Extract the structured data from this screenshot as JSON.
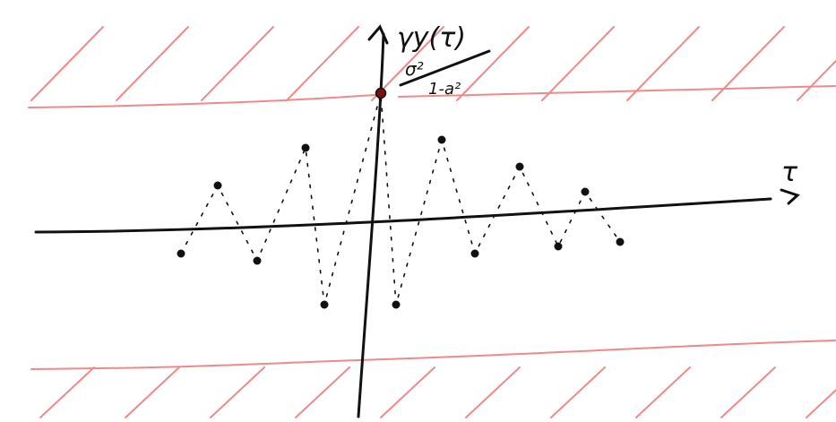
{
  "y_axis_label": "γy(τ)",
  "peak_label": {
    "numerator": "σ²",
    "denominator": "1-a²"
  },
  "x_axis_label": "τ"
}
